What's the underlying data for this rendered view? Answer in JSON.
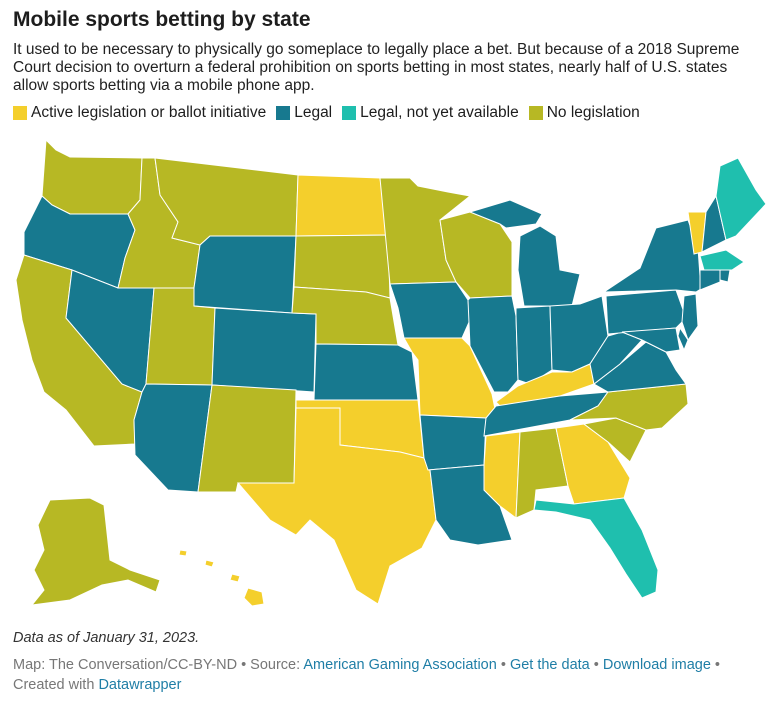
{
  "title": "Mobile sports betting by state",
  "description": "It used to be necessary to physically go someplace to legally place a bet. But because of a 2018 Supreme Court decision to overturn a federal prohibition on sports betting in most states, nearly half of U.S. states allow sports betting via a mobile phone app.",
  "legend": [
    {
      "label": "Active legislation or ballot initiative",
      "color": "#f4cf2c"
    },
    {
      "label": "Legal",
      "color": "#17798f"
    },
    {
      "label": "Legal, not yet available",
      "color": "#1fbfae"
    },
    {
      "label": "No legislation",
      "color": "#b7b824"
    }
  ],
  "colors": {
    "active": "#f4cf2c",
    "legal": "#17798f",
    "legal_not_yet": "#1fbfae",
    "none": "#b7b824"
  },
  "state_status": {
    "WA": "none",
    "OR": "legal",
    "CA": "none",
    "NV": "legal",
    "ID": "none",
    "MT": "none",
    "WY": "legal",
    "UT": "none",
    "AZ": "legal",
    "CO": "legal",
    "NM": "none",
    "ND": "active",
    "SD": "none",
    "NE": "none",
    "KS": "legal",
    "OK": "active",
    "TX": "active",
    "MN": "none",
    "IA": "legal",
    "MO": "active",
    "AR": "legal",
    "LA": "legal",
    "WI": "none",
    "IL": "legal",
    "MI": "legal",
    "IN": "legal",
    "OH": "legal",
    "KY": "active",
    "TN": "legal",
    "MS": "active",
    "AL": "none",
    "GA": "active",
    "FL": "legal_not_yet",
    "SC": "none",
    "NC": "none",
    "VA": "legal",
    "WV": "legal",
    "PA": "legal",
    "NY": "legal",
    "VT": "active",
    "NH": "legal",
    "ME": "legal_not_yet",
    "MA": "legal_not_yet",
    "CT": "legal",
    "RI": "legal",
    "NJ": "legal",
    "DE": "legal",
    "MD": "legal",
    "AK": "none",
    "HI": "active"
  },
  "notes": "Data as of January 31, 2023.",
  "footer": {
    "credit_prefix": "Map: The Conversation/CC-BY-ND • Source: ",
    "source_link": "American Gaming Association",
    "sep1": " • ",
    "get_data": "Get the data",
    "sep2": " • ",
    "download": "Download image",
    "created_prefix": " • Created with ",
    "datawrapper": "Datawrapper"
  }
}
